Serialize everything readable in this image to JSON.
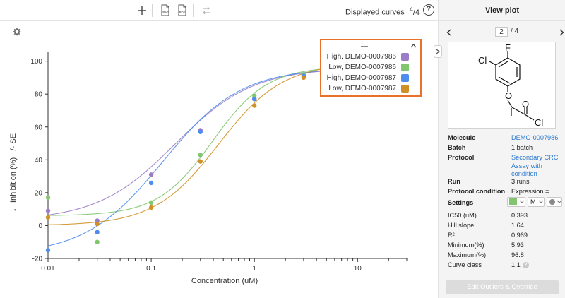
{
  "toolbar": {
    "add_icon": "plus-icon",
    "png_label": "PNG",
    "pdf_label": "PDF",
    "swap_icon": "swap-arrows-icon",
    "displayed_label": "Displayed curves",
    "displayed_num": "4",
    "displayed_den": "4",
    "help_label": "?"
  },
  "panel": {
    "title": "View plot",
    "page_current": "2",
    "page_total": "/ 4",
    "molecule_atoms": {
      "fluorine": "F",
      "chlorine_ring": "Cl",
      "oxygen_ether": "O",
      "oxygen_carbonyl": "O",
      "chlorine_acyl": "Cl"
    },
    "props": {
      "molecule_label": "Molecule",
      "molecule_value": "DEMO-0007986",
      "batch_label": "Batch",
      "batch_value": "1 batch",
      "protocol_label": "Protocol",
      "protocol_value": "Secondary CRC Assay with condition",
      "run_label": "Run",
      "run_value": "3 runs",
      "condition_label": "Protocol condition",
      "condition_value": "Expression = Low",
      "settings_label": "Settings",
      "settings_marker": "M",
      "ic50_label": "IC50 (uM)",
      "ic50_value": "0.393",
      "hill_label": "Hill slope",
      "hill_value": "1.64",
      "r2_label": "R²",
      "r2_value": "0.969",
      "min_label": "Minimum(%)",
      "min_value": "5.93",
      "max_label": "Maximum(%)",
      "max_value": "96.8",
      "class_label": "Curve class",
      "class_value": "1.1",
      "class_help": "?"
    },
    "edit_button": "Edit Outliers & Override"
  },
  "colors": {
    "high_7986": "#9b7dc7",
    "low_7986": "#82c56f",
    "high_7987": "#4e8ded",
    "low_7987": "#cf9127",
    "legend_border": "#e8722a",
    "link": "#2a7ad0"
  },
  "chart_data": {
    "type": "scatter",
    "xlabel": "Concentration (uM)",
    "ylabel": "Inhibition (%) +/- SE",
    "xscale": "log",
    "xlim": [
      0.01,
      30
    ],
    "ylim": [
      -20,
      105
    ],
    "x_ticks": [
      0.01,
      0.1,
      1,
      10
    ],
    "x_tick_labels": [
      "0.01",
      "0.1",
      "1",
      "10"
    ],
    "y_ticks": [
      -20,
      0,
      20,
      40,
      60,
      80,
      100
    ],
    "y_tick_labels": [
      "-20",
      "0",
      "20",
      "40",
      "60",
      "80",
      "100"
    ],
    "grid": false,
    "legend_position": "top-right",
    "series": [
      {
        "name": "High, DEMO-0007986",
        "color": "#9b7dc7",
        "x": [
          0.01,
          0.03,
          0.1,
          0.3,
          1,
          3
        ],
        "y": [
          9,
          3,
          31,
          58,
          77,
          91
        ],
        "fit": {
          "bottom": 3,
          "top": 96,
          "ic50": 0.17,
          "hill": 1.15
        }
      },
      {
        "name": "Low, DEMO-0007986",
        "color": "#82c56f",
        "x": [
          0.01,
          0.03,
          0.1,
          0.3,
          1,
          3
        ],
        "y": [
          17,
          -10,
          14,
          43,
          79,
          92
        ],
        "fit": {
          "bottom": 5.93,
          "top": 96.8,
          "ic50": 0.393,
          "hill": 1.64
        }
      },
      {
        "name": "High, DEMO-0007987",
        "color": "#4e8ded",
        "x": [
          0.01,
          0.03,
          0.1,
          0.3,
          1,
          3
        ],
        "y": [
          -15,
          -4,
          26,
          57,
          77,
          91
        ],
        "fit": {
          "bottom": -18,
          "top": 96,
          "ic50": 0.13,
          "hill": 1.15
        }
      },
      {
        "name": "Low, DEMO-0007987",
        "color": "#cf9127",
        "x": [
          0.01,
          0.03,
          0.1,
          0.3,
          1,
          3
        ],
        "y": [
          5,
          1,
          11,
          39,
          73,
          90
        ],
        "fit": {
          "bottom": 0,
          "top": 99,
          "ic50": 0.45,
          "hill": 1.4
        }
      }
    ]
  }
}
